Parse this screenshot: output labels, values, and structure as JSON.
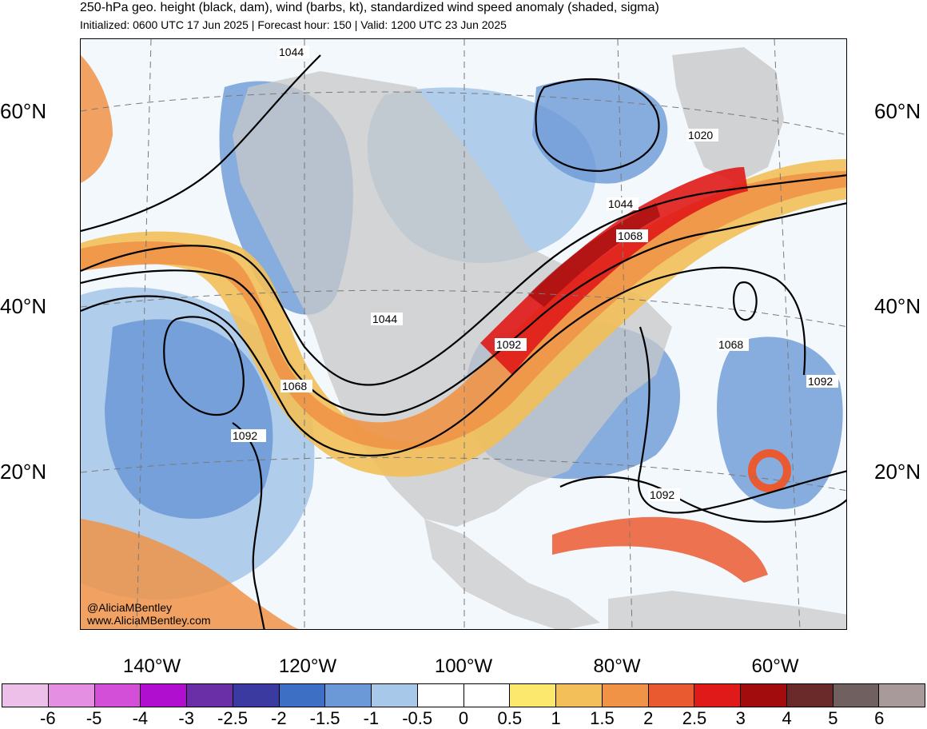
{
  "header": {
    "title": "250-hPa geo. height (black, dam), wind (barbs, kt), standardized wind speed anomaly (shaded, sigma)",
    "subtitle": "Initialized: 0600 UTC 17 Jun 2025 | Forecast hour: 150 | Valid: 1200 UTC 23 Jun 2025"
  },
  "map": {
    "latitude_labels": [
      "60°N",
      "40°N",
      "20°N"
    ],
    "longitude_labels": [
      "140°W",
      "120°W",
      "100°W",
      "80°W",
      "60°W"
    ],
    "contour_labels": [
      "1044",
      "1020",
      "1044",
      "1068",
      "1044",
      "1092",
      "1068",
      "1068",
      "1092",
      "1092",
      "1092"
    ],
    "credit": {
      "handle": "@AliciaMBentley",
      "website": "www.AliciaMBentley.com"
    },
    "colors": {
      "land": "#c8c8c8",
      "jet_core": "#e31a1c",
      "negative_anomaly": "#4d7fcc"
    }
  },
  "colorbar": {
    "ticks": [
      "-6",
      "-5",
      "-4",
      "-3",
      "-2.5",
      "-2",
      "-1.5",
      "-1",
      "-0.5",
      "0",
      "0.5",
      "1",
      "1.5",
      "2",
      "2.5",
      "3",
      "4",
      "5",
      "6"
    ],
    "colors": [
      "#ecc0e8",
      "#e58fe3",
      "#d44fd8",
      "#b10fcf",
      "#6a2ea6",
      "#3b3aa0",
      "#3d6fc4",
      "#6b98d6",
      "#a8c8ea",
      "#ffffff",
      "#ffffff",
      "#fbe86c",
      "#f2bf58",
      "#f09347",
      "#ea5a31",
      "#e01a18",
      "#a30c0c",
      "#6b2a2a",
      "#706060",
      "#a89a9a"
    ]
  }
}
